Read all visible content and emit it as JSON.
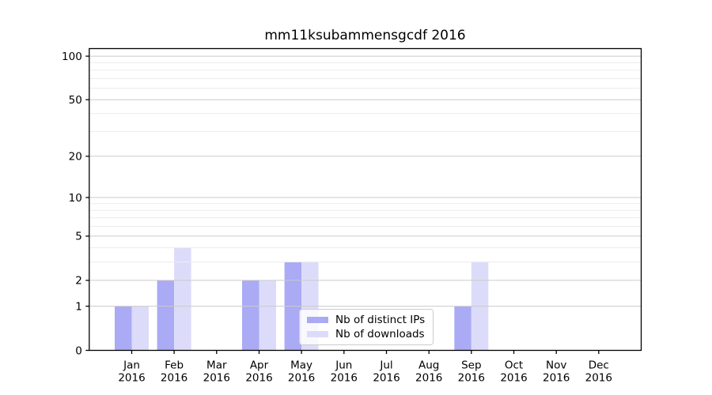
{
  "chart_data": {
    "type": "bar",
    "title": "mm11ksubammensgcdf 2016",
    "xlabel": "",
    "ylabel": "",
    "categories": [
      "Jan",
      "Feb",
      "Mar",
      "Apr",
      "May",
      "Jun",
      "Jul",
      "Aug",
      "Sep",
      "Oct",
      "Nov",
      "Dec"
    ],
    "year_label": "2016",
    "series": [
      {
        "name": "Nb of distinct IPs",
        "color": "#aaaaf5",
        "values": [
          1,
          2,
          0,
          2,
          3,
          0,
          0,
          0,
          1,
          0,
          0,
          0
        ]
      },
      {
        "name": "Nb of downloads",
        "color": "#dcdcfa",
        "values": [
          1,
          4,
          0,
          2,
          3,
          0,
          0,
          0,
          3,
          0,
          0,
          0
        ]
      }
    ],
    "yscale": "log1p",
    "ylim": [
      0,
      113
    ],
    "yticks_major": [
      0,
      1,
      2,
      5,
      10,
      20,
      50,
      100
    ],
    "yticks_minor": [
      3,
      4,
      6,
      7,
      8,
      9,
      30,
      40,
      60,
      70,
      80,
      90
    ],
    "grid": true,
    "legend_position": "inside-bottom-center"
  },
  "colors": {
    "background": "#ffffff",
    "axis": "#000000",
    "grid_major": "#cbcbcb",
    "grid_minor": "#ececec",
    "text": "#000000"
  }
}
